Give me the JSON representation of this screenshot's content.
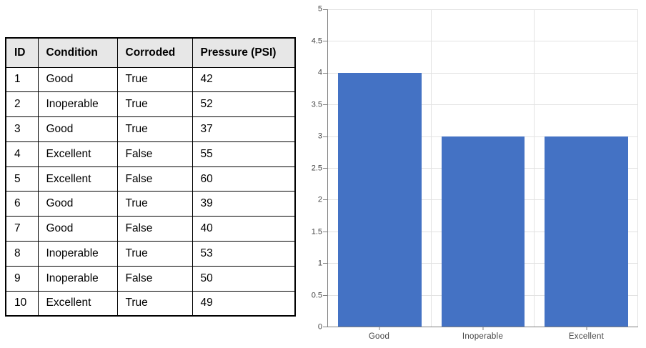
{
  "table": {
    "headers": [
      "ID",
      "Condition",
      "Corroded",
      "Pressure (PSI)"
    ],
    "header_bg": "#E7E7E7",
    "border_color": "#000000",
    "rows": [
      [
        "1",
        "Good",
        "True",
        "42"
      ],
      [
        "2",
        "Inoperable",
        "True",
        "52"
      ],
      [
        "3",
        "Good",
        "True",
        "37"
      ],
      [
        "4",
        "Excellent",
        "False",
        "55"
      ],
      [
        "5",
        "Excellent",
        "False",
        "60"
      ],
      [
        "6",
        "Good",
        "True",
        "39"
      ],
      [
        "7",
        "Good",
        "False",
        "40"
      ],
      [
        "8",
        "Inoperable",
        "True",
        "53"
      ],
      [
        "9",
        "Inoperable",
        "False",
        "50"
      ],
      [
        "10",
        "Excellent",
        "True",
        "49"
      ]
    ]
  },
  "chart_data": {
    "type": "bar",
    "categories": [
      "Good",
      "Inoperable",
      "Excellent"
    ],
    "values": [
      4,
      3,
      3
    ],
    "title": "",
    "xlabel": "",
    "ylabel": "",
    "ylim": [
      0,
      5
    ],
    "ytick_step": 0.5,
    "yticks": [
      "0",
      "0.5",
      "1",
      "1.5",
      "2",
      "2.5",
      "3",
      "3.5",
      "4",
      "4.5",
      "5"
    ],
    "grid": true,
    "legend": "none",
    "bar_color": "#4472C4",
    "axis_color": "#808080",
    "gridline_color": "#E2E2E2",
    "label_color": "#444444"
  }
}
